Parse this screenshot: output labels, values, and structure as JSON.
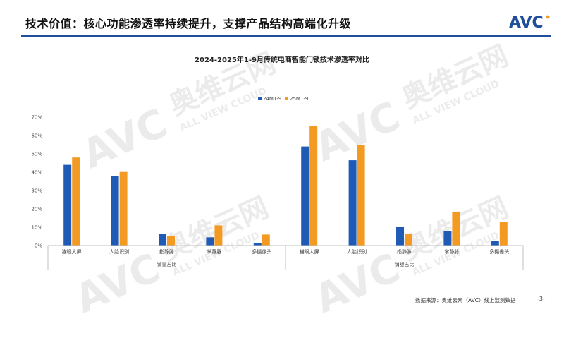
{
  "page": {
    "title": "技术价值：核心功能渗透率持续提升，支撑产品结构高端化升级",
    "logo_text": "AVC",
    "source": "数据来源：奥维云网（AVC）线上监测数据",
    "page_number": "-3-"
  },
  "watermark": {
    "text_cn": "奥维云网",
    "text_logo": "AVC",
    "text_en": "ALL VIEW CLOUD"
  },
  "colors": {
    "series1": "#1f5bb5",
    "series2": "#f39a22",
    "accent": "#1f4e9c"
  },
  "chart_data": {
    "type": "bar",
    "title": "2024-2025年1-9月传统电商智能门锁技术渗透率对比",
    "groups": [
      {
        "label": "销量占比",
        "categories": [
          "猫眼大屏",
          "人脸识别",
          "指静脉",
          "掌静脉",
          "多摄像头"
        ],
        "series": [
          {
            "name": "24M1-9",
            "values": [
              44,
              38,
              6.5,
              4.5,
              1.5
            ]
          },
          {
            "name": "25M1-9",
            "values": [
              48,
              40.5,
              5,
              11,
              6
            ]
          }
        ]
      },
      {
        "label": "销额占比",
        "categories": [
          "猫眼大屏",
          "人脸识别",
          "指静脉",
          "掌静脉",
          "多摄像头"
        ],
        "series": [
          {
            "name": "24M1-9",
            "values": [
              54,
              46.5,
              10,
              8,
              2.5
            ]
          },
          {
            "name": "25M1-9",
            "values": [
              65,
              55,
              6.5,
              18.5,
              13
            ]
          }
        ]
      }
    ],
    "legend": [
      "24M1-9",
      "25M1-9"
    ],
    "legend_position": "top-center",
    "ylim": [
      0,
      70
    ],
    "yticks": [
      "0%",
      "10%",
      "20%",
      "30%",
      "40%",
      "50%",
      "60%",
      "70%"
    ],
    "grid": false
  }
}
